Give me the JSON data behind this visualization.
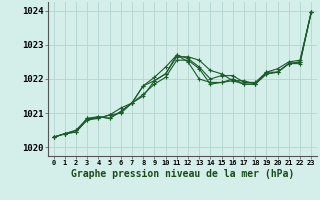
{
  "background_color": "#d4eeea",
  "grid_color": "#b8d8d4",
  "line_color": "#1a5c2a",
  "marker_color": "#1a5c2a",
  "title": "Graphe pression niveau de la mer (hPa)",
  "xlim": [
    -0.5,
    23.5
  ],
  "ylim": [
    1019.75,
    1024.25
  ],
  "yticks": [
    1020,
    1021,
    1022,
    1023,
    1024
  ],
  "xtick_labels": [
    "0",
    "1",
    "2",
    "3",
    "4",
    "5",
    "6",
    "7",
    "8",
    "9",
    "10",
    "11",
    "12",
    "13",
    "14",
    "15",
    "16",
    "17",
    "18",
    "19",
    "20",
    "21",
    "22",
    "23"
  ],
  "series": [
    [
      1020.3,
      1020.4,
      1020.45,
      1020.8,
      1020.9,
      1020.85,
      1021.05,
      1021.3,
      1021.55,
      1021.85,
      1022.05,
      1022.55,
      1022.55,
      1022.3,
      1021.85,
      1021.9,
      1021.95,
      1021.85,
      1021.85,
      1022.2,
      1022.2,
      1022.45,
      1022.5,
      1023.95
    ],
    [
      1020.3,
      1020.4,
      1020.45,
      1020.85,
      1020.9,
      1020.85,
      1021.05,
      1021.3,
      1021.8,
      1021.95,
      1022.15,
      1022.65,
      1022.65,
      1022.55,
      1022.25,
      1022.15,
      1021.95,
      1021.95,
      1021.85,
      1022.15,
      1022.2,
      1022.45,
      1022.45,
      1023.95
    ],
    [
      1020.3,
      1020.4,
      1020.5,
      1020.8,
      1020.85,
      1020.95,
      1021.0,
      1021.3,
      1021.5,
      1021.95,
      1022.15,
      1022.7,
      1022.5,
      1022.0,
      1021.9,
      1021.9,
      1022.0,
      1021.85,
      1021.85,
      1022.15,
      1022.2,
      1022.45,
      1022.5,
      1023.95
    ],
    [
      1020.3,
      1020.4,
      1020.5,
      1020.85,
      1020.85,
      1020.95,
      1021.15,
      1021.3,
      1021.8,
      1022.05,
      1022.35,
      1022.7,
      1022.6,
      1022.35,
      1022.0,
      1022.1,
      1022.1,
      1021.9,
      1021.9,
      1022.2,
      1022.3,
      1022.5,
      1022.55,
      1023.95
    ]
  ]
}
